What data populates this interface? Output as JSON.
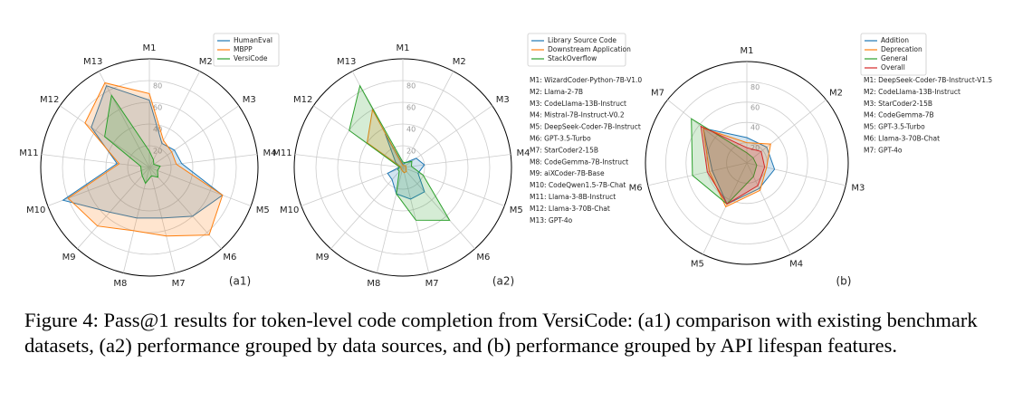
{
  "chart_data": [
    {
      "type": "radar",
      "label": "(a1)",
      "categories": [
        "M1",
        "M2",
        "M3",
        "M4",
        "M5",
        "M6",
        "M7",
        "M8",
        "M9",
        "M10",
        "M11",
        "M12",
        "M13"
      ],
      "rlim": [
        0,
        100
      ],
      "rticks": [
        20,
        40,
        60,
        80
      ],
      "series": [
        {
          "name": "HumanEval",
          "color": "#1f77b4",
          "values": [
            62,
            25,
            28,
            30,
            72,
            60,
            48,
            48,
            55,
            85,
            30,
            65,
            85
          ]
        },
        {
          "name": "MBPP",
          "color": "#ff7f0e",
          "values": [
            68,
            28,
            25,
            25,
            72,
            83,
            65,
            60,
            72,
            80,
            28,
            72,
            88
          ]
        },
        {
          "name": "VersiCode",
          "color": "#2ca02c",
          "values": [
            15,
            8,
            5,
            10,
            8,
            12,
            8,
            15,
            10,
            8,
            8,
            50,
            75
          ]
        }
      ]
    },
    {
      "type": "radar",
      "label": "(a2)",
      "categories": [
        "M1",
        "M2",
        "M3",
        "M4",
        "M5",
        "M6",
        "M7",
        "M8",
        "M9",
        "M10",
        "M11",
        "M12",
        "M13"
      ],
      "rlim": [
        0,
        100
      ],
      "rticks": [
        20,
        40,
        60,
        80
      ],
      "series": [
        {
          "name": "Library Source Code",
          "color": "#1f77b4",
          "values": [
            3,
            5,
            15,
            20,
            15,
            30,
            30,
            25,
            15,
            15,
            3,
            8,
            35
          ]
        },
        {
          "name": "Downstream Application",
          "color": "#ff7f0e",
          "values": [
            2,
            2,
            3,
            3,
            3,
            5,
            5,
            3,
            2,
            2,
            2,
            40,
            60
          ]
        },
        {
          "name": "StackOverflow",
          "color": "#2ca02c",
          "values": [
            5,
            5,
            10,
            8,
            20,
            65,
            50,
            25,
            5,
            5,
            3,
            60,
            85
          ]
        }
      ],
      "annotations": [
        "M1: WizardCoder-Python-7B-V1.0",
        "M2: Llama-2-7B",
        "M3: CodeLlama-13B-Instruct",
        "M4: Mistral-7B-Instruct-V0.2",
        "M5: DeepSeek-Coder-7B-Instruct",
        "M6: GPT-3.5-Turbo",
        "M7: StarCoder2-15B",
        "M8: CodeGemma-7B-Instruct",
        "M9: aiXCoder-7B-Base",
        "M10: CodeQwen1.5-7B-Chat",
        "M11: Llama-3-8B-Instruct",
        "M12: Llama-3-70B-Chat",
        "M13: GPT-4o"
      ]
    },
    {
      "type": "radar",
      "label": "(b)",
      "categories": [
        "M1",
        "M2",
        "M3",
        "M4",
        "M5",
        "M6",
        "M7"
      ],
      "rlim": [
        0,
        100
      ],
      "rticks": [
        20,
        40,
        60,
        80
      ],
      "series": [
        {
          "name": "Addition",
          "color": "#1f77b4",
          "values": [
            25,
            25,
            28,
            28,
            45,
            35,
            55
          ]
        },
        {
          "name": "Deprecation",
          "color": "#ff7f0e",
          "values": [
            20,
            30,
            20,
            30,
            48,
            38,
            55
          ]
        },
        {
          "name": "General",
          "color": "#2ca02c",
          "values": [
            10,
            8,
            10,
            15,
            45,
            55,
            70
          ]
        },
        {
          "name": "Overall",
          "color": "#d62728",
          "values": [
            15,
            18,
            18,
            25,
            45,
            40,
            58
          ]
        }
      ],
      "annotations": [
        "M1: DeepSeek-Coder-7B-Instruct-V1.5",
        "M2: CodeLlama-13B-Instruct",
        "M3: StarCoder2-15B",
        "M4: CodeGemma-7B",
        "M5: GPT-3.5-Turbo",
        "M6: Llama-3-70B-Chat",
        "M7: GPT-4o"
      ]
    }
  ],
  "caption": "Figure 4: Pass@1 results for token-level code completion from VersiCode: (a1) comparison with existing benchmark datasets, (a2) performance grouped by data sources, and (b) performance grouped by API lifespan features."
}
